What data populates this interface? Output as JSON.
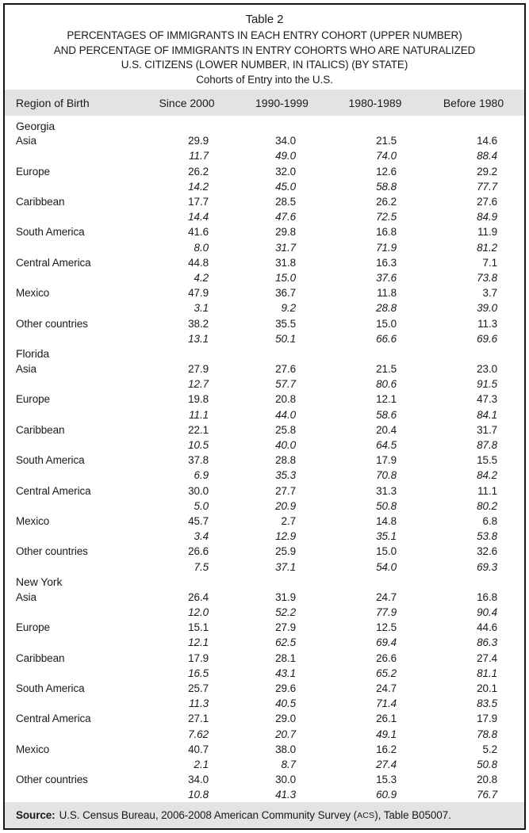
{
  "title": {
    "table_label": "Table 2",
    "line1": "PERCENTAGES OF IMMIGRANTS IN EACH ENTRY COHORT (UPPER NUMBER)",
    "line2": "AND PERCENTAGE OF IMMIGRANTS IN ENTRY COHORTS WHO ARE NATURALIZED",
    "line3": "U.S. CITIZENS (LOWER NUMBER, IN ITALICS) (BY STATE)",
    "subtitle": "Cohorts of Entry into the U.S."
  },
  "columns": {
    "region_header": "Region of Birth",
    "cohorts": [
      "Since 2000",
      "1990-1999",
      "1980-1989",
      "Before 1980"
    ]
  },
  "states": [
    {
      "name": "Georgia",
      "rows": [
        {
          "region": "Asia",
          "upper": [
            "29.9",
            "34.0",
            "21.5",
            "14.6"
          ],
          "lower": [
            "11.7",
            "49.0",
            "74.0",
            "88.4"
          ]
        },
        {
          "region": "Europe",
          "upper": [
            "26.2",
            "32.0",
            "12.6",
            "29.2"
          ],
          "lower": [
            "14.2",
            "45.0",
            "58.8",
            "77.7"
          ]
        },
        {
          "region": "Caribbean",
          "upper": [
            "17.7",
            "28.5",
            "26.2",
            "27.6"
          ],
          "lower": [
            "14.4",
            "47.6",
            "72.5",
            "84.9"
          ]
        },
        {
          "region": "South America",
          "upper": [
            "41.6",
            "29.8",
            "16.8",
            "11.9"
          ],
          "lower": [
            "8.0",
            "31.7",
            "71.9",
            "81.2"
          ]
        },
        {
          "region": "Central America",
          "upper": [
            "44.8",
            "31.8",
            "16.3",
            "7.1"
          ],
          "lower": [
            "4.2",
            "15.0",
            "37.6",
            "73.8"
          ]
        },
        {
          "region": "Mexico",
          "upper": [
            "47.9",
            "36.7",
            "11.8",
            "3.7"
          ],
          "lower": [
            "3.1",
            "9.2",
            "28.8",
            "39.0"
          ]
        },
        {
          "region": "Other countries",
          "upper": [
            "38.2",
            "35.5",
            "15.0",
            "11.3"
          ],
          "lower": [
            "13.1",
            "50.1",
            "66.6",
            "69.6"
          ]
        }
      ]
    },
    {
      "name": "Florida",
      "rows": [
        {
          "region": "Asia",
          "upper": [
            "27.9",
            "27.6",
            "21.5",
            "23.0"
          ],
          "lower": [
            "12.7",
            "57.7",
            "80.6",
            "91.5"
          ]
        },
        {
          "region": "Europe",
          "upper": [
            "19.8",
            "20.8",
            "12.1",
            "47.3"
          ],
          "lower": [
            "11.1",
            "44.0",
            "58.6",
            "84.1"
          ]
        },
        {
          "region": "Caribbean",
          "upper": [
            "22.1",
            "25.8",
            "20.4",
            "31.7"
          ],
          "lower": [
            "10.5",
            "40.0",
            "64.5",
            "87.8"
          ]
        },
        {
          "region": "South America",
          "upper": [
            "37.8",
            "28.8",
            "17.9",
            "15.5"
          ],
          "lower": [
            "6.9",
            "35.3",
            "70.8",
            "84.2"
          ]
        },
        {
          "region": "Central America",
          "upper": [
            "30.0",
            "27.7",
            "31.3",
            "11.1"
          ],
          "lower": [
            "5.0",
            "20.9",
            "50.8",
            "80.2"
          ]
        },
        {
          "region": "Mexico",
          "upper": [
            "45.7",
            "2.7",
            "14.8",
            "6.8"
          ],
          "lower": [
            "3.4",
            "12.9",
            "35.1",
            "53.8"
          ]
        },
        {
          "region": "Other countries",
          "upper": [
            "26.6",
            "25.9",
            "15.0",
            "32.6"
          ],
          "lower": [
            "7.5",
            "37.1",
            "54.0",
            "69.3"
          ]
        }
      ]
    },
    {
      "name": "New York",
      "rows": [
        {
          "region": "Asia",
          "upper": [
            "26.4",
            "31.9",
            "24.7",
            "16.8"
          ],
          "lower": [
            "12.0",
            "52.2",
            "77.9",
            "90.4"
          ]
        },
        {
          "region": "Europe",
          "upper": [
            "15.1",
            "27.9",
            "12.5",
            "44.6"
          ],
          "lower": [
            "12.1",
            "62.5",
            "69.4",
            "86.3"
          ]
        },
        {
          "region": "Caribbean",
          "upper": [
            "17.9",
            "28.1",
            "26.6",
            "27.4"
          ],
          "lower": [
            "16.5",
            "43.1",
            "65.2",
            "81.1"
          ]
        },
        {
          "region": "South America",
          "upper": [
            "25.7",
            "29.6",
            "24.7",
            "20.1"
          ],
          "lower": [
            "11.3",
            "40.5",
            "71.4",
            "83.5"
          ]
        },
        {
          "region": "Central America",
          "upper": [
            "27.1",
            "29.0",
            "26.1",
            "17.9"
          ],
          "lower": [
            "7.62",
            "20.7",
            "49.1",
            "78.8"
          ]
        },
        {
          "region": "Mexico",
          "upper": [
            "40.7",
            "38.0",
            "16.2",
            "5.2"
          ],
          "lower": [
            "2.1",
            "8.7",
            "27.4",
            "50.8"
          ]
        },
        {
          "region": "Other countries",
          "upper": [
            "34.0",
            "30.0",
            "15.3",
            "20.8"
          ],
          "lower": [
            "10.8",
            "41.3",
            "60.9",
            "76.7"
          ]
        }
      ]
    }
  ],
  "source": {
    "label": "Source:",
    "before_acs": "U.S. Census Bureau, 2006-2008 American Community Survey (",
    "acs": "ACS",
    "after_acs": "), Table B05007."
  }
}
